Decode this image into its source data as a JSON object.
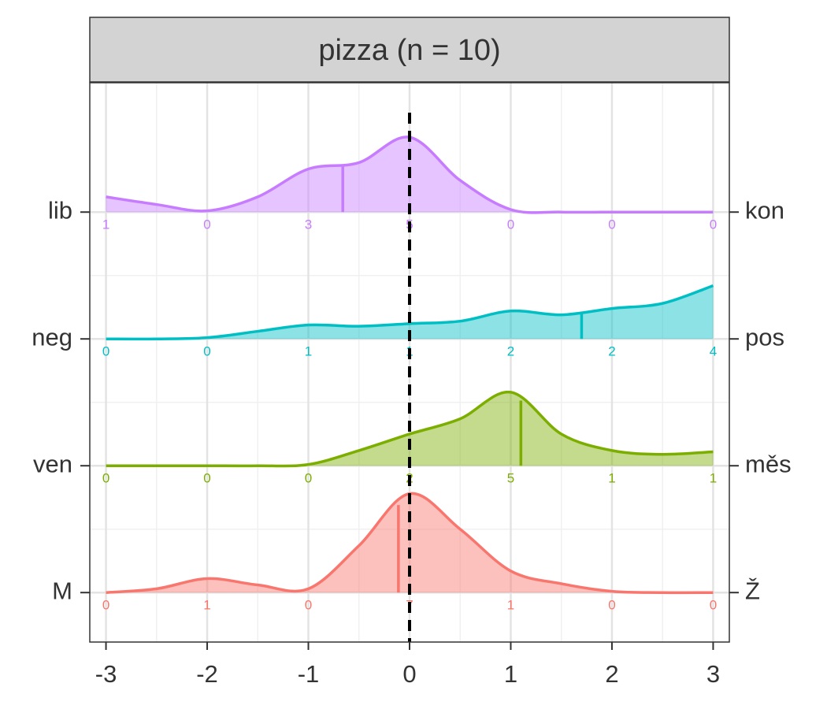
{
  "chart_data": {
    "type": "ridgeline",
    "title": "pizza (n = 10)",
    "x": [
      -3,
      -2.5,
      -2,
      -1.5,
      -1,
      -0.5,
      0,
      0.5,
      1,
      1.5,
      2,
      2.5,
      3
    ],
    "xlim": [
      -3.16,
      3.16
    ],
    "xticks": [
      -3,
      -2,
      -1,
      0,
      1,
      2,
      3
    ],
    "ylim": [
      -0.39,
      4.02
    ],
    "grid": true,
    "reference_line": 0,
    "series": [
      {
        "name": "M",
        "right_label": "Ž",
        "color": "#F8766D",
        "values": [
          0,
          0.03,
          0.11,
          0.06,
          0.03,
          0.37,
          0.78,
          0.5,
          0.17,
          0.07,
          0.01,
          0,
          0
        ],
        "counts": [
          0,
          1,
          0,
          7,
          1,
          0,
          0
        ],
        "mean": -0.11
      },
      {
        "name": "ven",
        "right_label": "měs",
        "color": "#7CAE00",
        "values": [
          0,
          0,
          0,
          0,
          0.01,
          0.12,
          0.25,
          0.37,
          0.58,
          0.25,
          0.12,
          0.09,
          0.11
        ],
        "counts": [
          0,
          0,
          0,
          2,
          5,
          1,
          1
        ],
        "mean": 1.1
      },
      {
        "name": "neg",
        "right_label": "pos",
        "color": "#00BFC4",
        "values": [
          0,
          0,
          0.01,
          0.06,
          0.11,
          0.1,
          0.12,
          0.14,
          0.22,
          0.19,
          0.24,
          0.28,
          0.42
        ],
        "counts": [
          0,
          0,
          1,
          1,
          2,
          2,
          4
        ],
        "mean": 1.7
      },
      {
        "name": "lib",
        "right_label": "kon",
        "color": "#C77CFF",
        "values": [
          0.12,
          0.06,
          0.01,
          0.12,
          0.34,
          0.39,
          0.59,
          0.25,
          0.02,
          0,
          0,
          0,
          0
        ],
        "counts": [
          1,
          0,
          3,
          5,
          0,
          0,
          0
        ],
        "mean": -0.66
      }
    ]
  }
}
